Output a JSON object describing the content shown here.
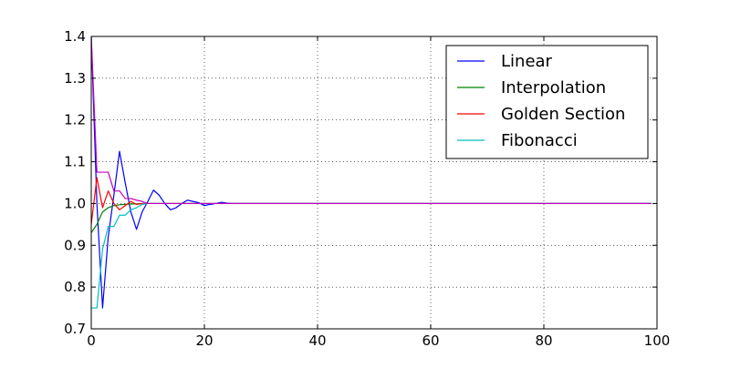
{
  "chart_data": {
    "type": "line",
    "title": "",
    "xlabel": "",
    "ylabel": "",
    "xlim": [
      0,
      100
    ],
    "ylim": [
      0.7,
      1.4
    ],
    "xticks": [
      "0",
      "20",
      "40",
      "60",
      "80",
      "100"
    ],
    "yticks": [
      "0.7",
      "0.8",
      "0.9",
      "1.0",
      "1.1",
      "1.2",
      "1.3",
      "1.4"
    ],
    "grid": true,
    "legend_position": "top-right",
    "series": [
      {
        "name": "Linear",
        "color": "#0000ff",
        "x": [
          0,
          1,
          2,
          3,
          4,
          5,
          6,
          7,
          8,
          9,
          10,
          11,
          12,
          13,
          14,
          15,
          16,
          17,
          18,
          19,
          20,
          21,
          22,
          23,
          24,
          25,
          30,
          40,
          60,
          80,
          99
        ],
        "y": [
          1.4,
          1.0,
          0.75,
          0.92,
          1.02,
          1.125,
          1.05,
          0.98,
          0.938,
          0.98,
          1.005,
          1.032,
          1.02,
          1.0,
          0.985,
          0.99,
          1.0,
          1.008,
          1.005,
          1.002,
          0.995,
          0.998,
          1.0,
          1.003,
          1.001,
          1.0,
          1.0,
          1.0,
          1.0,
          1.0,
          1.0
        ]
      },
      {
        "name": "Interpolation",
        "color": "#008000",
        "x": [
          0,
          1,
          2,
          3,
          4,
          5,
          6,
          7,
          8,
          9,
          10,
          12,
          15,
          20,
          30,
          60,
          99
        ],
        "y": [
          0.93,
          0.95,
          0.98,
          0.99,
          0.995,
          0.997,
          0.998,
          0.999,
          0.999,
          1.0,
          1.0,
          1.0,
          1.0,
          1.0,
          1.0,
          1.0,
          1.0
        ]
      },
      {
        "name": "Golden Section",
        "color": "#ff0000",
        "x": [
          0,
          1,
          2,
          3,
          4,
          5,
          6,
          7,
          8,
          9,
          10,
          12,
          15,
          20,
          30,
          60,
          99
        ],
        "y": [
          0.95,
          1.062,
          0.99,
          1.03,
          1.0,
          0.985,
          0.995,
          1.005,
          0.998,
          1.0,
          1.0,
          1.0,
          1.0,
          1.0,
          1.0,
          1.0,
          1.0
        ]
      },
      {
        "name": "Fibonacci",
        "color": "#00bfbf",
        "x": [
          0,
          1,
          2,
          3,
          4,
          5,
          6,
          7,
          8,
          9,
          10,
          12,
          15,
          20,
          30,
          60,
          99
        ],
        "y": [
          0.75,
          0.75,
          0.89,
          0.945,
          0.945,
          0.972,
          0.972,
          0.985,
          0.99,
          0.998,
          1.0,
          1.0,
          1.0,
          1.0,
          1.0,
          1.0,
          1.0
        ]
      },
      {
        "color": "#bf00bf",
        "x": [
          0,
          1,
          2,
          3,
          4,
          5,
          6,
          7,
          8,
          9,
          10,
          12,
          15,
          20,
          30,
          60,
          99
        ],
        "y": [
          1.4,
          1.075,
          1.075,
          1.075,
          1.03,
          1.03,
          1.012,
          1.012,
          1.008,
          1.005,
          1.0,
          1.0,
          1.0,
          1.0,
          1.0,
          1.0,
          1.0
        ]
      }
    ]
  }
}
